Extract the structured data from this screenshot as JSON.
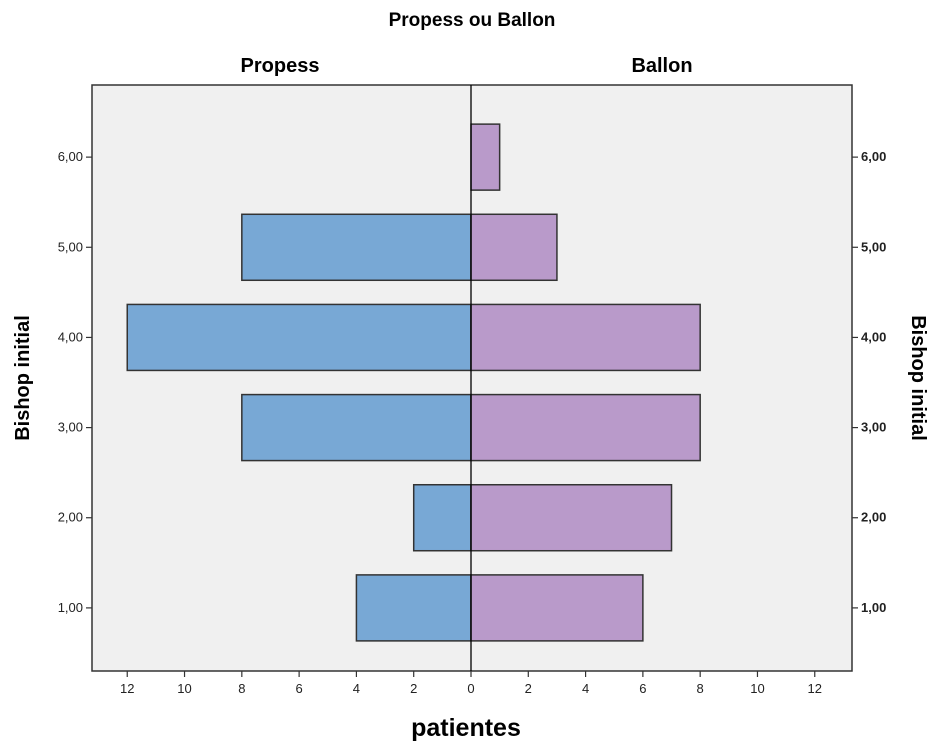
{
  "chart_data": {
    "type": "bar",
    "orientation": "horizontal-population-pyramid",
    "title": "Propess ou Ballon",
    "panels": [
      "Propess",
      "Ballon"
    ],
    "categories": [
      "1,00",
      "2,00",
      "3,00",
      "4,00",
      "5,00",
      "6,00"
    ],
    "y_values": [
      1,
      2,
      3,
      4,
      5,
      6
    ],
    "series": [
      {
        "name": "Propess",
        "values": [
          4,
          2,
          8,
          12,
          8,
          0
        ],
        "color": "#78a8d5"
      },
      {
        "name": "Ballon",
        "values": [
          6,
          7,
          8,
          8,
          3,
          1
        ],
        "color": "#b99aca"
      }
    ],
    "xlabel": "patientes",
    "ylabel": "Bishop initial",
    "ylabel_right": "Bishop initial",
    "xlim": [
      0,
      13.3
    ],
    "ylim": [
      0.3,
      6.8
    ],
    "x_ticks": [
      0,
      2,
      4,
      6,
      8,
      10,
      12
    ],
    "x_tick_labels": [
      "0",
      "2",
      "4",
      "6",
      "8",
      "10",
      "12"
    ],
    "y_tick_labels": [
      "1,00",
      "2,00",
      "3,00",
      "4,00",
      "5,00",
      "6,00"
    ],
    "grid": false,
    "background_color": "#f0f0f0",
    "bar_outline_color": "#333333"
  }
}
